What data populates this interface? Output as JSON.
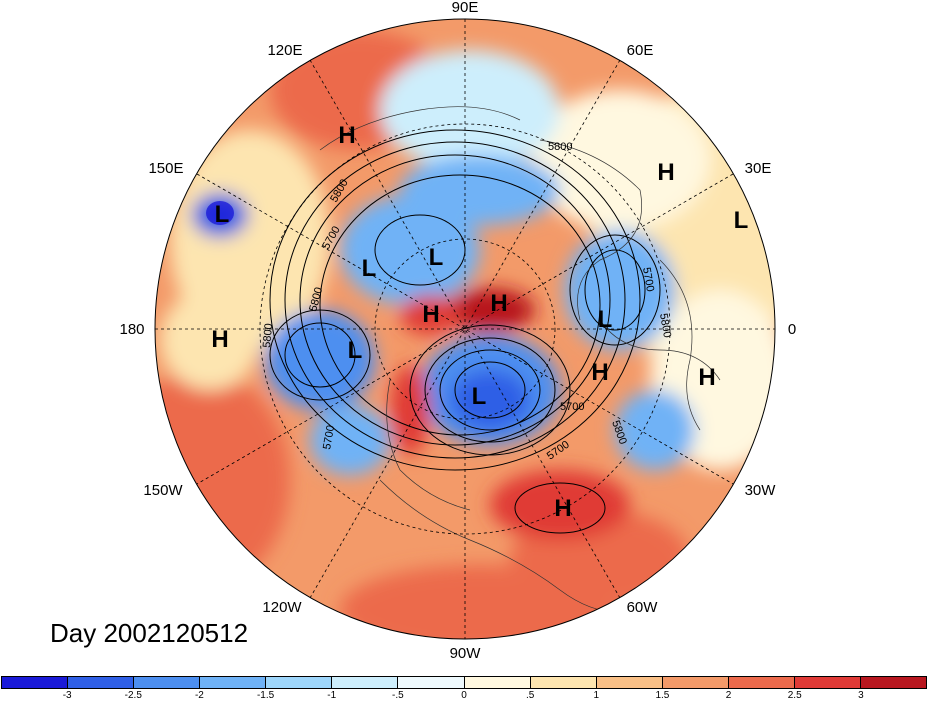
{
  "title": "Day 2002120512",
  "longitude_labels": [
    "90E",
    "60E",
    "30E",
    "0",
    "30W",
    "60W",
    "90W",
    "120W",
    "150W",
    "180",
    "150E",
    "120E"
  ],
  "pressure_centers": [
    "H",
    "L",
    "H",
    "L",
    "L",
    "L",
    "H",
    "H",
    "L",
    "L",
    "H",
    "L",
    "H",
    "H",
    "H"
  ],
  "contour_labels": [
    "5800",
    "5800",
    "5700",
    "5800",
    "5800",
    "5700",
    "5700",
    "5800",
    "5700",
    "5800",
    "5700"
  ],
  "colorbar": {
    "colors": [
      "#1a1ad8",
      "#2f5fe6",
      "#4d8ff0",
      "#6fb2f6",
      "#9ed6fb",
      "#cdeefc",
      "#eef9fd",
      "#fff8e0",
      "#fde5b0",
      "#f9c087",
      "#f39a69",
      "#ec6a4c",
      "#e03a36",
      "#b8171f"
    ],
    "tick_labels": [
      "-3",
      "-2.5",
      "-2",
      "-1.5",
      "-1",
      "-.5",
      "0",
      ".5",
      "1",
      "1.5",
      "2",
      "2.5",
      "3"
    ]
  }
}
